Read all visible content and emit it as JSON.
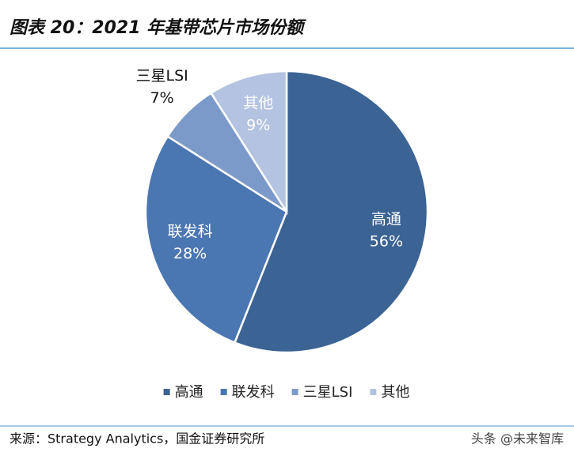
{
  "chart_data": {
    "type": "pie",
    "title": "图表 20：2021 年基带芯片市场份额",
    "categories": [
      "高通",
      "联发科",
      "三星LSI",
      "其他"
    ],
    "values": [
      56,
      28,
      7,
      9
    ],
    "value_labels": [
      "56%",
      "28%",
      "7%",
      "9%"
    ],
    "colors": [
      "#3b6394",
      "#4a76b2",
      "#7c9ac9",
      "#b3c3e1"
    ],
    "legend": "bottom"
  },
  "source": "来源：Strategy Analytics，国金证券研究所",
  "watermark": "头条 @未来智库"
}
